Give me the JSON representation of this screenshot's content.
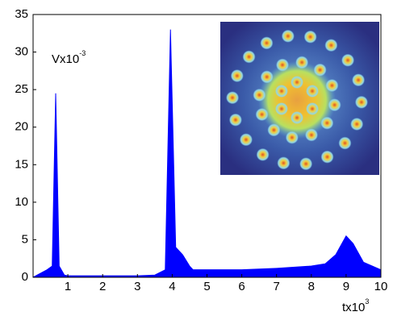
{
  "chart_data": {
    "type": "area",
    "y_label": {
      "base": "Vx10",
      "exponent": "-3"
    },
    "x_label": {
      "base": "tx10",
      "exponent": "3"
    },
    "x": [
      0,
      0.4,
      0.55,
      0.65,
      0.75,
      0.9,
      1,
      2,
      3,
      3.5,
      3.8,
      3.95,
      4.1,
      4.3,
      4.5,
      4.6,
      5,
      6,
      7,
      8,
      8.4,
      8.7,
      9,
      9.2,
      9.5,
      10
    ],
    "values": [
      0,
      1,
      1.5,
      24.5,
      1.5,
      0.3,
      0.2,
      0.2,
      0.2,
      0.3,
      1,
      33,
      4,
      3,
      1.5,
      1,
      1,
      1,
      1.2,
      1.5,
      1.8,
      3,
      5.5,
      4.5,
      2,
      1
    ],
    "color": "#0000ff",
    "xlim": [
      0,
      10
    ],
    "xticks": [
      1,
      2,
      3,
      4,
      5,
      6,
      7,
      8,
      9,
      10
    ],
    "ylim": [
      0,
      35
    ],
    "yticks": [
      0,
      5,
      10,
      15,
      20,
      25,
      30,
      35
    ]
  }
}
